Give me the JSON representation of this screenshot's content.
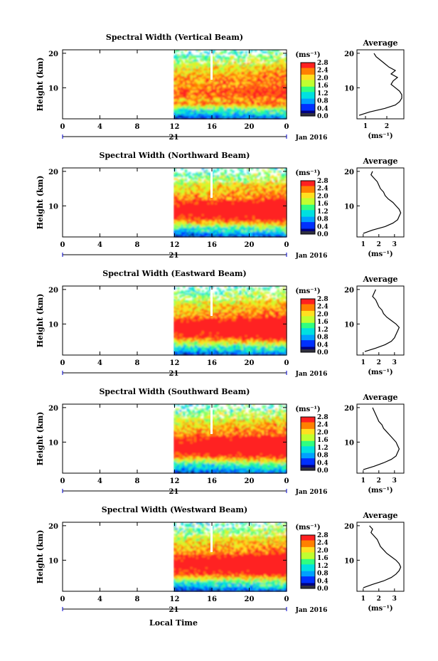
{
  "chart_data": {
    "type": "heatmap",
    "date_label": "Jan 2016",
    "xlabel": "Local Time",
    "ylabel": "Height (km)",
    "x_ticks": [
      "0",
      "4",
      "8",
      "12",
      "16",
      "20",
      "0"
    ],
    "day_label": "21",
    "y_ticks": [
      "20",
      "10"
    ],
    "unit_label": "(ms⁻¹)",
    "colorbar_ticks": [
      "2.8",
      "2.4",
      "2.0",
      "1.6",
      "1.2",
      "0.8",
      "0.4",
      "0.0"
    ],
    "colorbar_range": [
      0,
      2.8
    ],
    "colors": [
      "#000080",
      "#0030ff",
      "#00a0ff",
      "#00e0e0",
      "#30ff80",
      "#c0ff30",
      "#ffe020",
      "#ff8000",
      "#ff2020"
    ],
    "average_title": "Average",
    "average_unit": "(ms⁻¹)",
    "panels": [
      {
        "title": "Spectral Width (Vertical Beam)",
        "avg_ticks": [
          "1",
          "2"
        ],
        "avg_xlim": [
          0.6,
          2.8
        ],
        "avg_profile": {
          "height_km": [
            2,
            3,
            4,
            5,
            6,
            7,
            8,
            9,
            10,
            11,
            12,
            13,
            14,
            15,
            16,
            17,
            18,
            19,
            20
          ],
          "width": [
            0.7,
            1.2,
            1.9,
            2.4,
            2.6,
            2.7,
            2.7,
            2.6,
            2.4,
            2.2,
            2.3,
            2.5,
            2.2,
            2.4,
            2.1,
            1.9,
            1.7,
            1.5,
            1.4
          ]
        }
      },
      {
        "title": "Spectral Width (Northward Beam)",
        "avg_ticks": [
          "1",
          "2",
          "3"
        ],
        "avg_xlim": [
          0.6,
          3.6
        ],
        "avg_profile": {
          "height_km": [
            2,
            3,
            4,
            5,
            6,
            7,
            8,
            9,
            10,
            11,
            12,
            13,
            14,
            15,
            16,
            17,
            18,
            19,
            20
          ],
          "width": [
            1.0,
            1.6,
            2.4,
            2.9,
            3.2,
            3.3,
            3.4,
            3.3,
            3.1,
            2.9,
            2.6,
            2.4,
            2.3,
            2.1,
            2.0,
            1.9,
            1.7,
            1.5,
            1.6
          ]
        }
      },
      {
        "title": "Spectral Width (Eastward Beam)",
        "avg_ticks": [
          "1",
          "2",
          "3"
        ],
        "avg_xlim": [
          0.6,
          3.6
        ],
        "avg_profile": {
          "height_km": [
            2,
            3,
            4,
            5,
            6,
            7,
            8,
            9,
            10,
            11,
            12,
            13,
            14,
            15,
            16,
            17,
            18,
            19,
            20
          ],
          "width": [
            1.1,
            1.8,
            2.4,
            2.8,
            3.0,
            3.1,
            3.2,
            3.3,
            3.1,
            2.8,
            2.5,
            2.3,
            2.2,
            2.0,
            1.9,
            1.8,
            1.6,
            1.7,
            1.8
          ]
        }
      },
      {
        "title": "Spectral Width (Southward Beam)",
        "avg_ticks": [
          "1",
          "2",
          "3"
        ],
        "avg_xlim": [
          0.6,
          3.6
        ],
        "avg_profile": {
          "height_km": [
            2,
            3,
            4,
            5,
            6,
            7,
            8,
            9,
            10,
            11,
            12,
            13,
            14,
            15,
            16,
            17,
            18,
            19,
            20
          ],
          "width": [
            1.0,
            1.7,
            2.3,
            2.8,
            3.1,
            3.2,
            3.3,
            3.2,
            3.1,
            2.9,
            2.7,
            2.5,
            2.3,
            2.2,
            2.0,
            1.9,
            1.8,
            1.7,
            1.6
          ]
        }
      },
      {
        "title": "Spectral Width (Westward Beam)",
        "avg_ticks": [
          "1",
          "2",
          "3"
        ],
        "avg_xlim": [
          0.6,
          3.6
        ],
        "avg_profile": {
          "height_km": [
            2,
            3,
            4,
            5,
            6,
            7,
            8,
            9,
            10,
            11,
            12,
            13,
            14,
            15,
            16,
            17,
            18,
            19,
            20
          ],
          "width": [
            1.0,
            1.6,
            2.3,
            2.8,
            3.1,
            3.3,
            3.4,
            3.3,
            3.1,
            2.8,
            2.5,
            2.3,
            2.1,
            2.0,
            1.9,
            1.7,
            1.5,
            1.6,
            1.4
          ]
        }
      }
    ]
  }
}
